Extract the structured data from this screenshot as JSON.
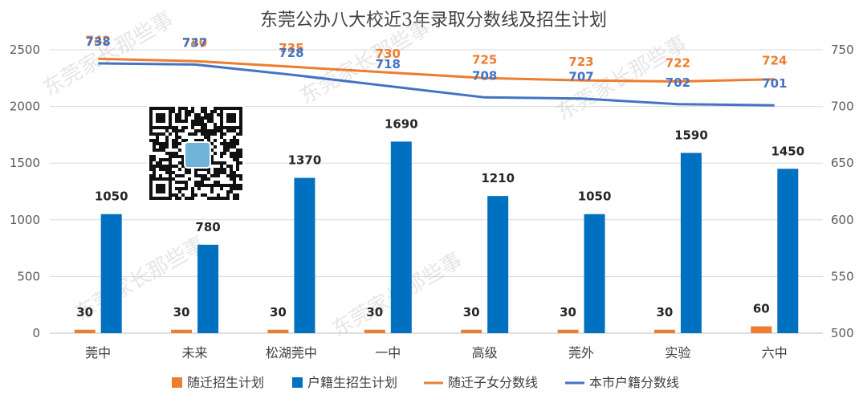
{
  "chart_data": {
    "type": "bar",
    "title": "东莞公办八大校近3年录取分数线及招生计划",
    "categories": [
      "莞中",
      "未来",
      "松湖莞中",
      "一中",
      "高级",
      "莞外",
      "实验",
      "六中"
    ],
    "y_left": {
      "ylim": [
        0,
        2500
      ],
      "ticks": [
        0,
        500,
        1000,
        1500,
        2000,
        2500
      ]
    },
    "y_right": {
      "ylim": [
        500,
        750
      ],
      "ticks": [
        500,
        550,
        600,
        650,
        700,
        750
      ]
    },
    "series": [
      {
        "name": "随迁招生计划",
        "kind": "bar",
        "axis": "left",
        "color": "#ED7D31",
        "values": [
          30,
          30,
          30,
          30,
          30,
          30,
          30,
          60
        ]
      },
      {
        "name": "户籍生招生计划",
        "kind": "bar",
        "axis": "left",
        "color": "#0070C0",
        "values": [
          1050,
          780,
          1370,
          1690,
          1210,
          1050,
          1590,
          1450
        ]
      },
      {
        "name": "随迁子女分数线",
        "kind": "line",
        "axis": "right",
        "color": "#ED7D31",
        "values": [
          742,
          740,
          735,
          730,
          725,
          723,
          722,
          724
        ]
      },
      {
        "name": "本市户籍分数线",
        "kind": "line",
        "axis": "right",
        "color": "#4472C4",
        "values": [
          738,
          737,
          728,
          718,
          708,
          707,
          702,
          701
        ]
      }
    ],
    "legend_position": "bottom",
    "grid": true
  },
  "watermark": "东莞家长那些事"
}
